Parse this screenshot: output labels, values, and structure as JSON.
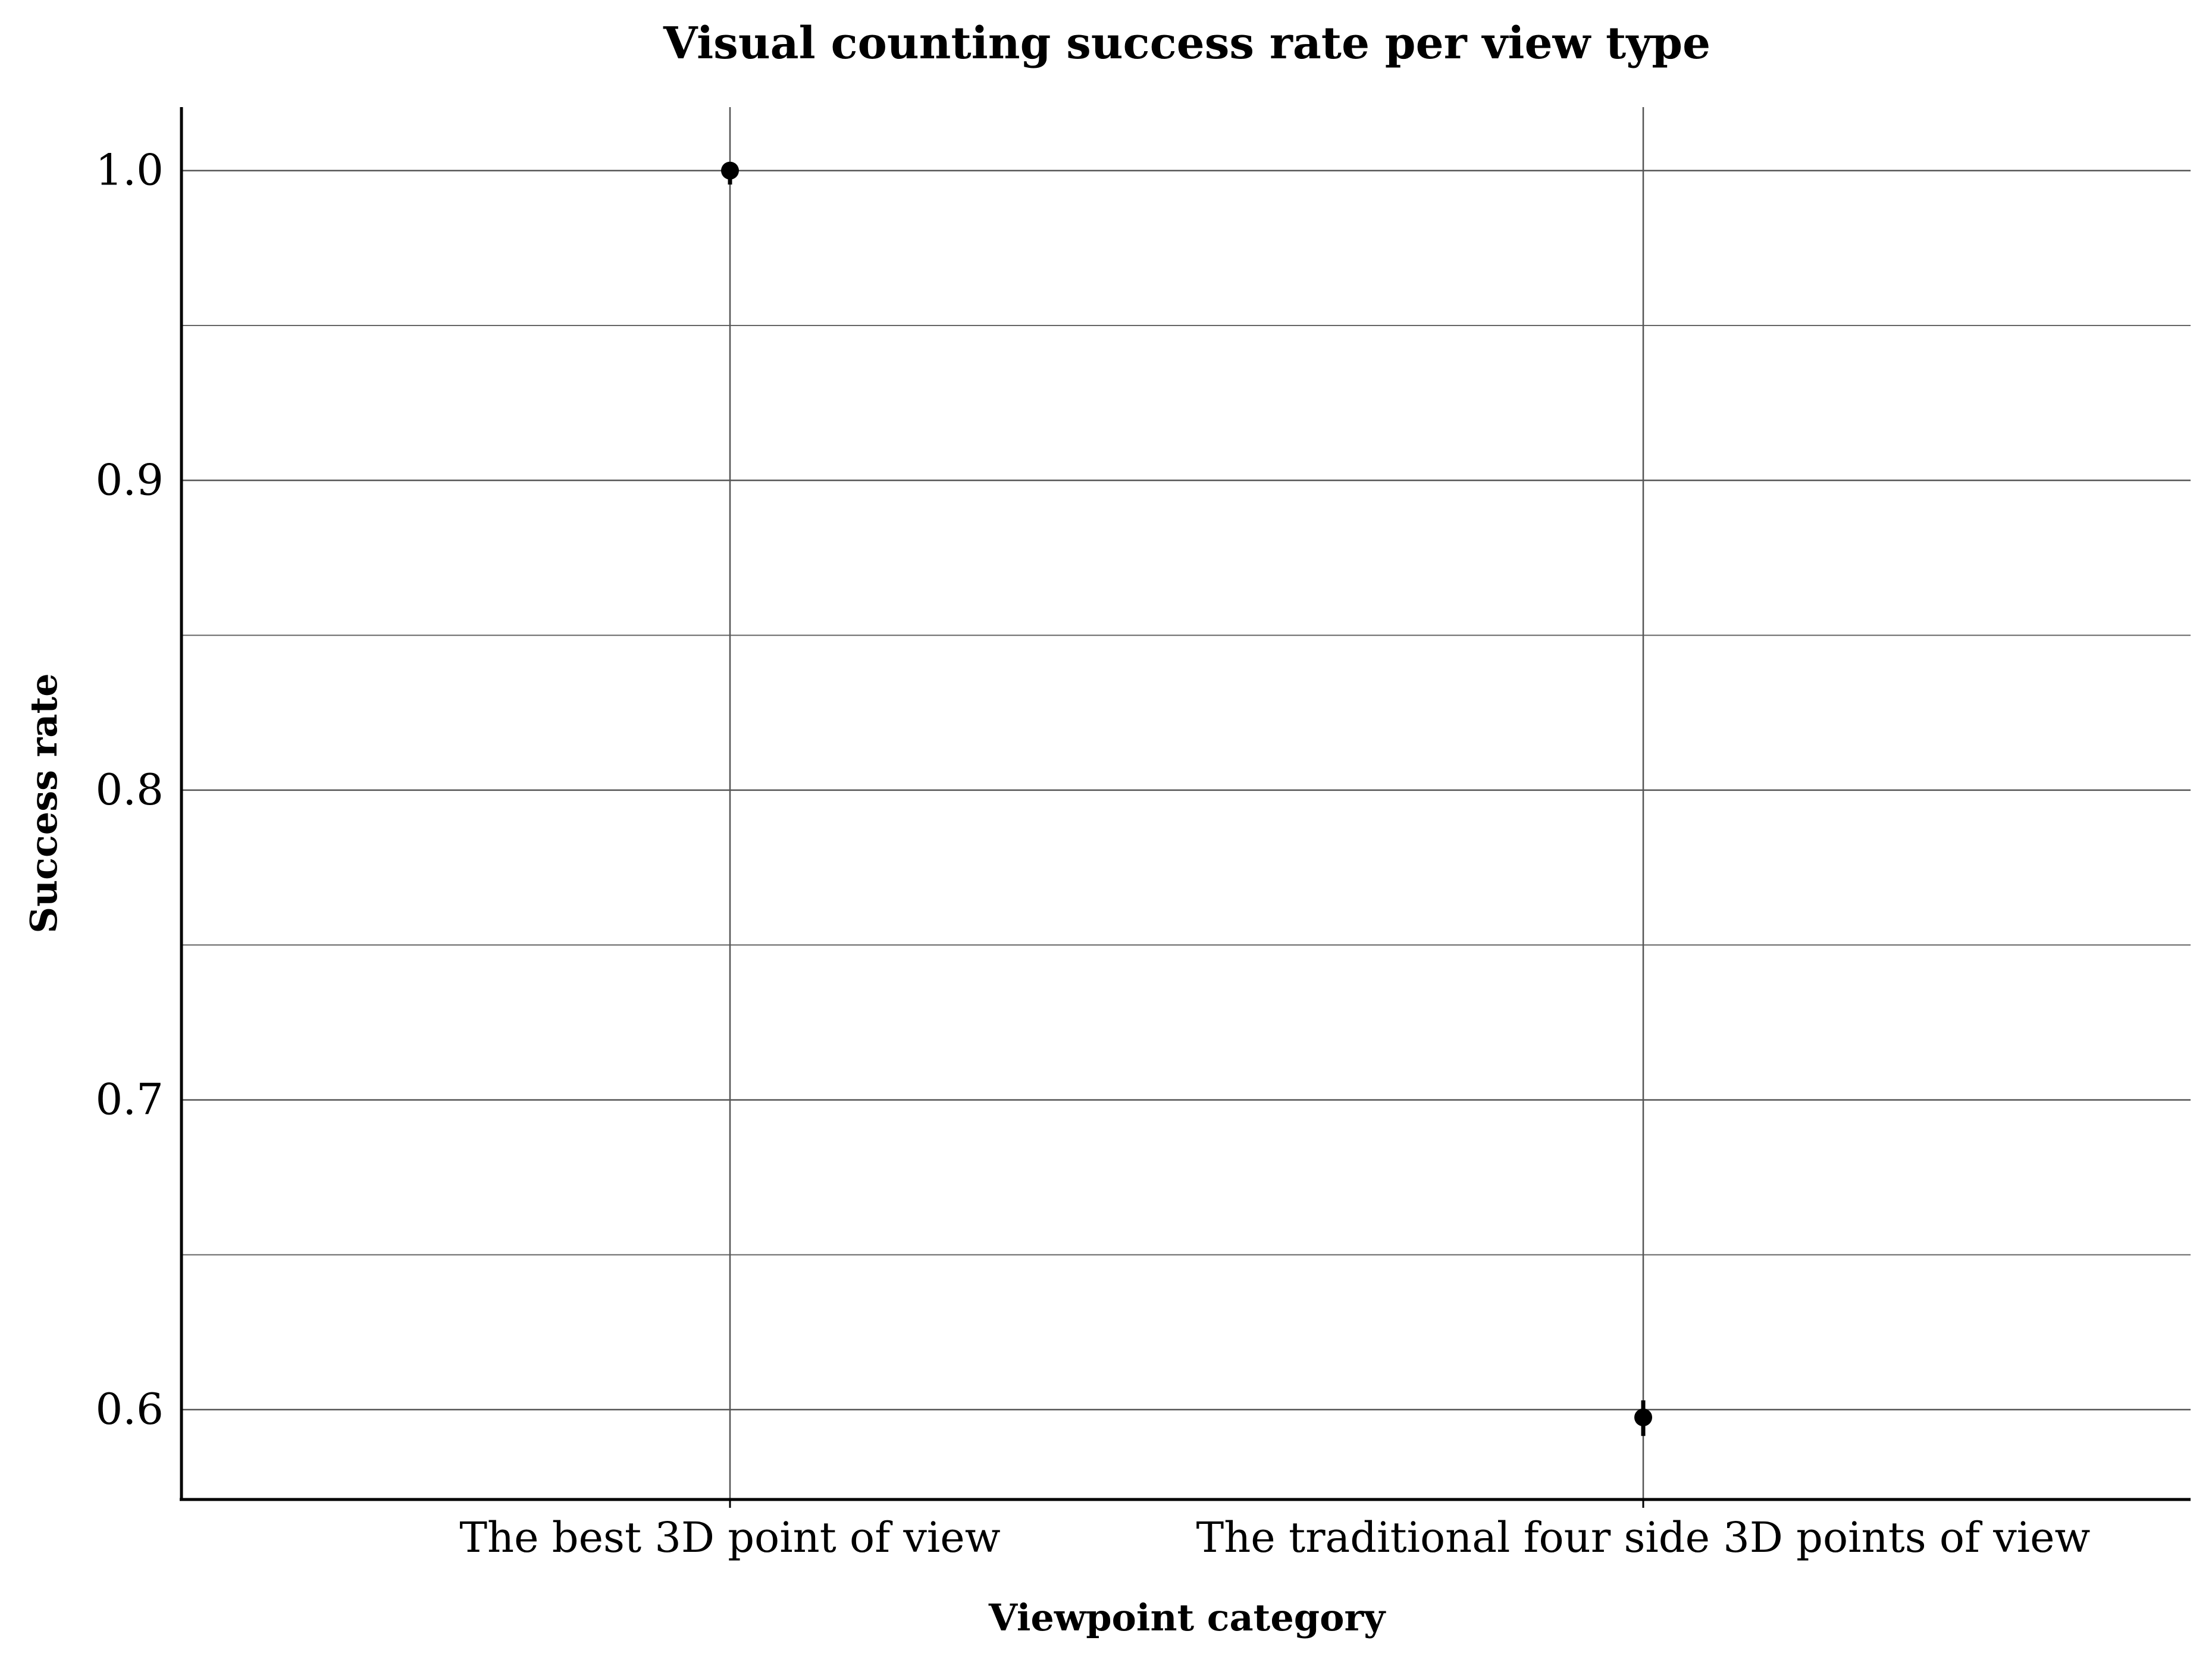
{
  "chart_data": {
    "type": "scatter",
    "title": "Visual counting success rate per view type",
    "xlabel": "Viewpoint category",
    "ylabel": "Success rate",
    "categories": [
      "The best 3D point of view",
      "The traditional four side 3D points of view"
    ],
    "series": [
      {
        "values": [
          1.0,
          0.5975
        ],
        "error_low": [
          0.9955,
          0.5915
        ],
        "error_high": [
          1.0,
          0.603
        ]
      }
    ],
    "ylim": [
      0.571,
      1.0205
    ],
    "yticks": [
      "0.6",
      "0.7",
      "0.8",
      "0.9",
      "1.0"
    ],
    "ytick_values": [
      0.6,
      0.7,
      0.8,
      0.9,
      1.0
    ],
    "yminor_values": [
      0.65,
      0.75,
      0.85,
      0.95
    ],
    "grid": true,
    "legend": "none",
    "colors": {
      "point": "#000000",
      "grid": "#555555",
      "axis": "#000000"
    }
  }
}
